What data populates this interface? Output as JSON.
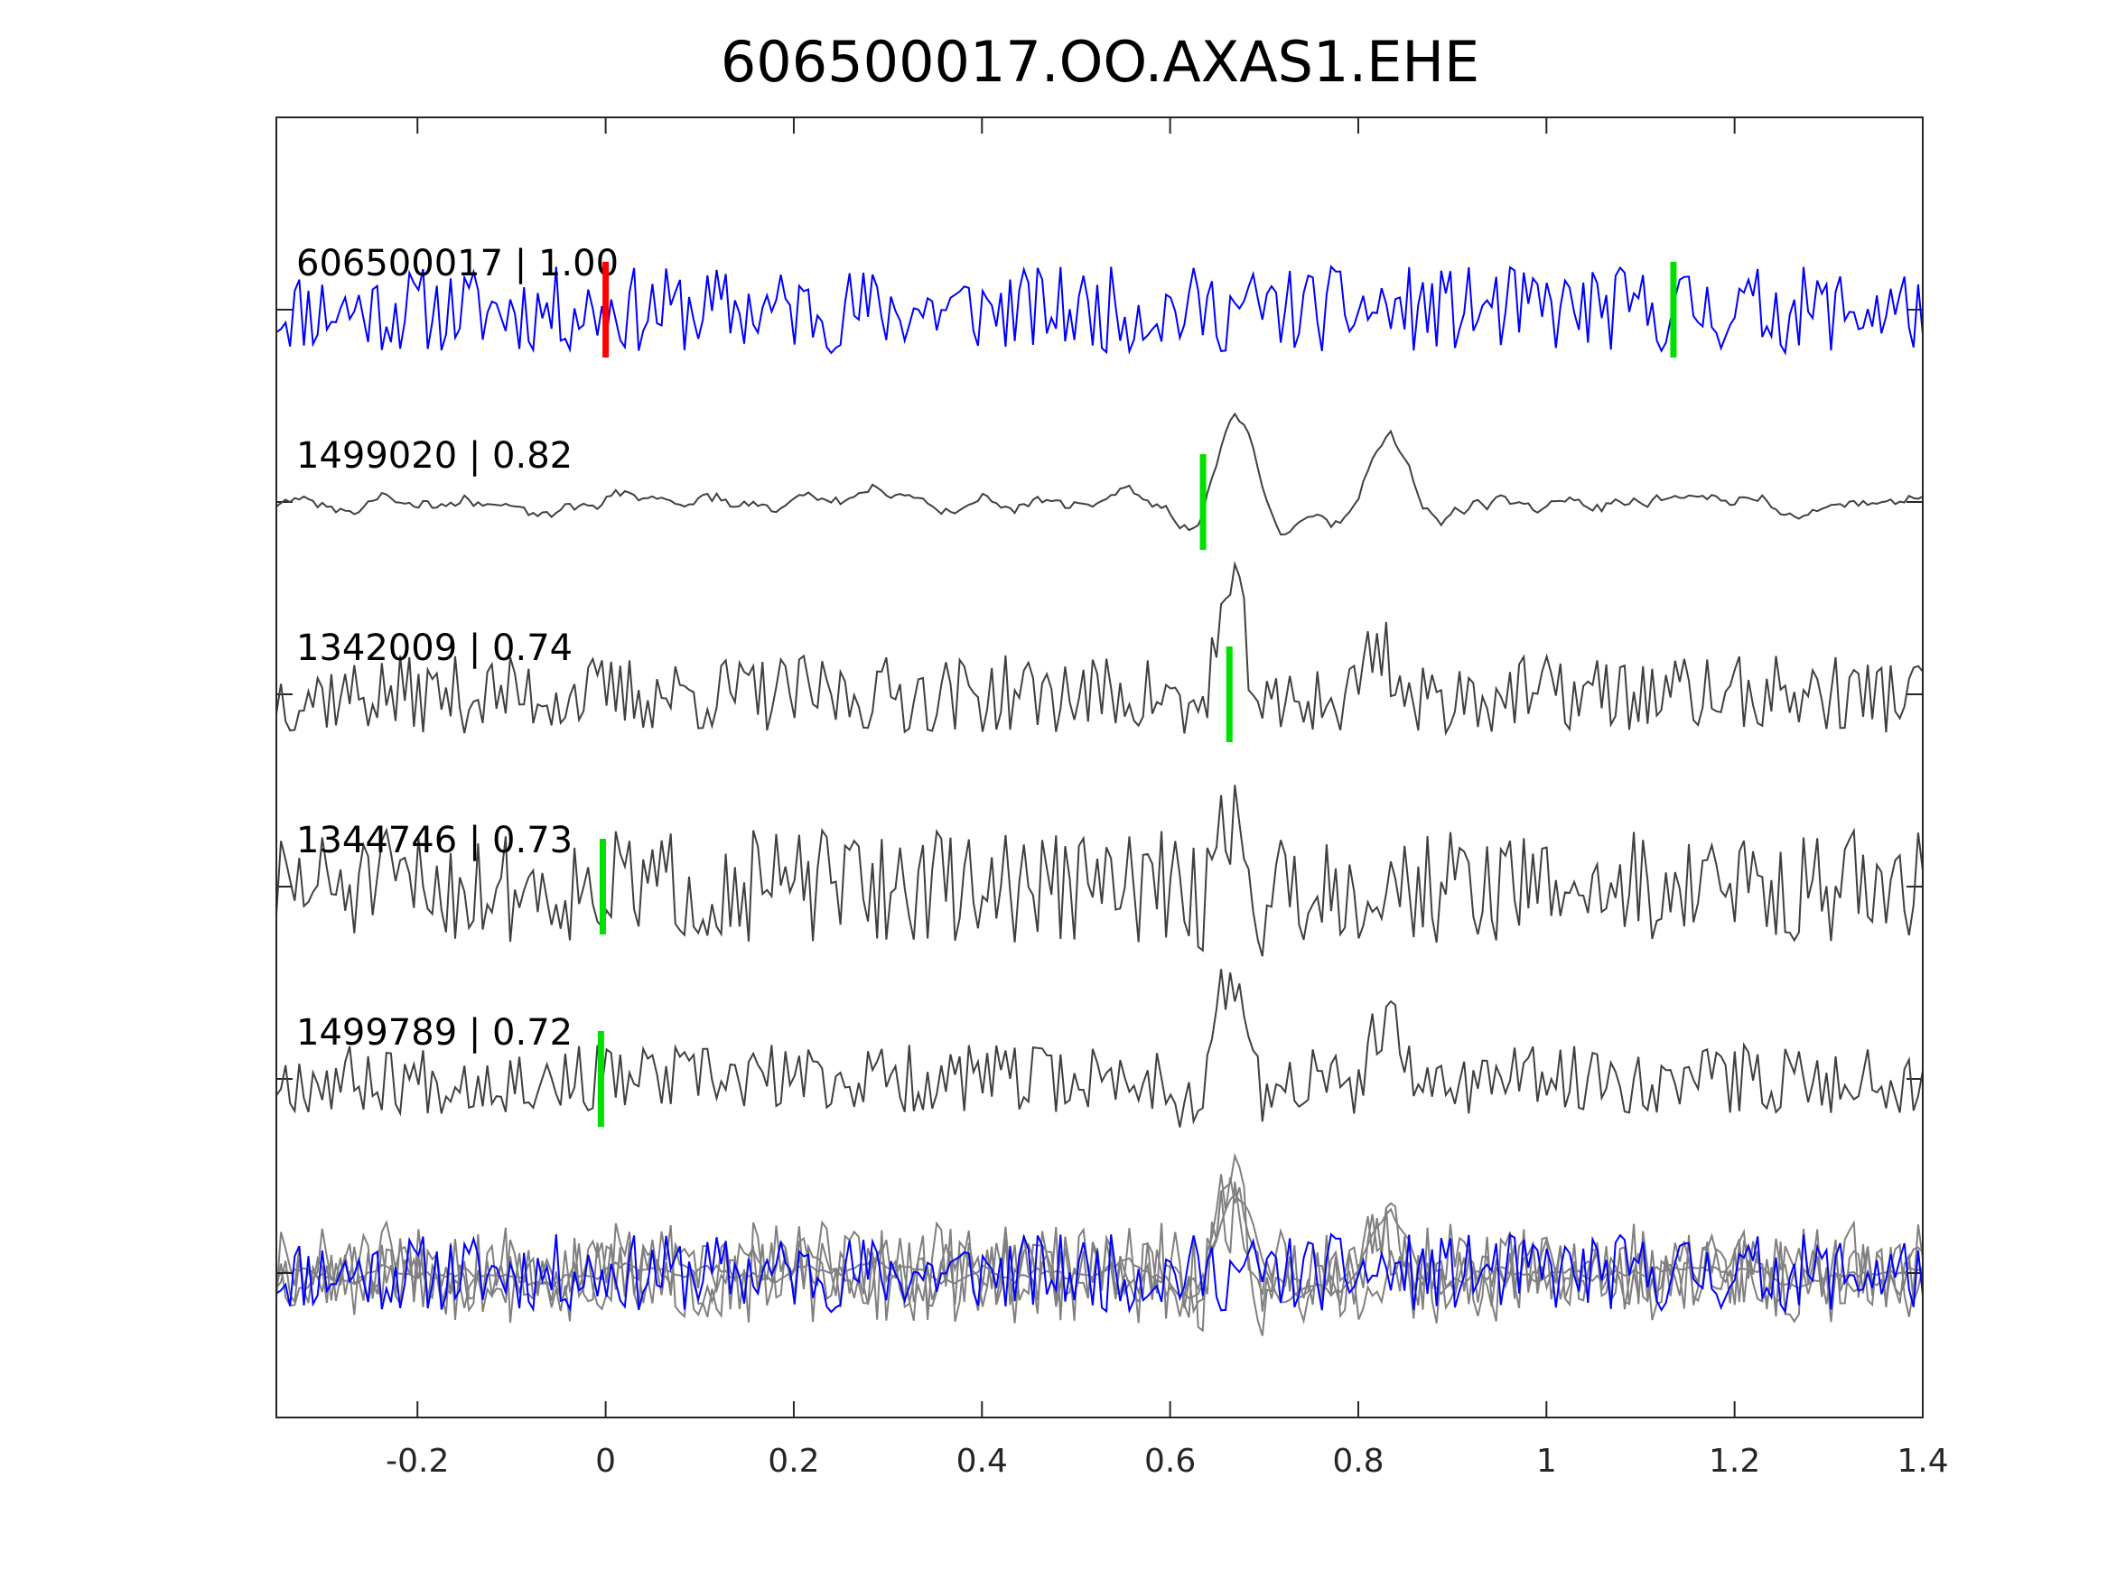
{
  "chart_data": {
    "type": "line",
    "title": "606500017.OO.AXAS1.EHE",
    "xlabel": "",
    "ylabel": "",
    "xlim": [
      -0.35,
      1.4
    ],
    "xticks": [
      -0.2,
      0,
      0.2,
      0.4,
      0.6,
      0.8,
      1,
      1.2,
      1.4
    ],
    "xtick_labels": [
      "-0.2",
      "0",
      "0.2",
      "0.4",
      "0.6",
      "0.8",
      "1",
      "1.2",
      "1.4"
    ],
    "grid": false,
    "colors": {
      "template": "#0000ff",
      "match": "#404040",
      "stack": "#808080",
      "pick_p": "#ff0000",
      "pick_s": "#00e000",
      "axis": "#262626"
    },
    "series": [
      {
        "name": "606500017 | 1.00",
        "label": "606500017 | 1.00",
        "color": "#0000ff",
        "seed": 11,
        "noise": 1.0,
        "smooth": 1,
        "events": [],
        "picks": [
          {
            "t": 0.0,
            "color": "#ff0000"
          },
          {
            "t": 1.135,
            "color": "#00e000"
          }
        ]
      },
      {
        "name": "1499020 | 0.82",
        "label": "1499020 | 0.82",
        "color": "#404040",
        "seed": 23,
        "noise": 0.35,
        "smooth": 4,
        "events": [
          {
            "t": 0.67,
            "amp": 2.4,
            "width": 0.05
          },
          {
            "t": 0.83,
            "amp": 1.3,
            "width": 0.05
          }
        ],
        "picks": [
          {
            "t": 0.635,
            "color": "#00e000"
          }
        ]
      },
      {
        "name": "1342009 | 0.74",
        "label": "1342009 | 0.74",
        "color": "#404040",
        "seed": 37,
        "noise": 0.9,
        "smooth": 1,
        "events": [
          {
            "t": 0.665,
            "amp": 2.2,
            "width": 0.04
          },
          {
            "t": 0.82,
            "amp": 1.2,
            "width": 0.04
          }
        ],
        "picks": [
          {
            "t": 0.663,
            "color": "#00e000"
          }
        ]
      },
      {
        "name": "1344746 | 0.73",
        "label": "1344746 | 0.73",
        "color": "#404040",
        "seed": 51,
        "noise": 1.3,
        "smooth": 1,
        "events": [
          {
            "t": 0.66,
            "amp": 1.8,
            "width": 0.03
          }
        ],
        "picks": [
          {
            "t": -0.003,
            "color": "#00e000"
          }
        ]
      },
      {
        "name": "1499789 | 0.72",
        "label": "1499789 | 0.72",
        "color": "#404040",
        "seed": 67,
        "noise": 0.8,
        "smooth": 1,
        "events": [
          {
            "t": 0.665,
            "amp": 2.3,
            "width": 0.04
          },
          {
            "t": 0.83,
            "amp": 1.2,
            "width": 0.04
          }
        ],
        "picks": [
          {
            "t": -0.005,
            "color": "#00e000"
          }
        ]
      }
    ],
    "stack": {
      "description_visible": false
    }
  }
}
